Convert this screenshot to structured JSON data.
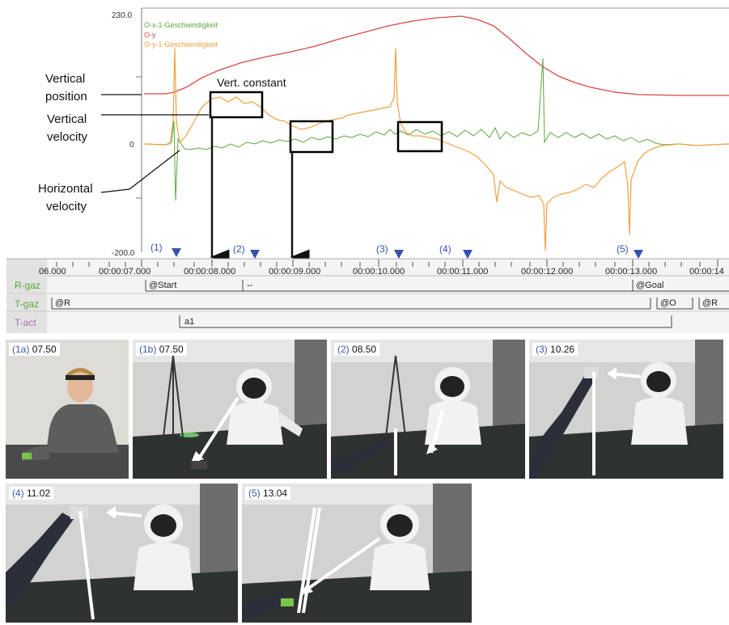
{
  "chart": {
    "y_max_label": "230.0",
    "y_zero_label": "0",
    "y_min_label": "-200.0",
    "legend": [
      {
        "label": "O-x-1-Geschwindigkeit",
        "color": "#5aa63a"
      },
      {
        "label": "O-y",
        "color": "#d84848"
      },
      {
        "label": "O-y-1-Geschwindigkeit",
        "color": "#f0a040"
      }
    ],
    "annotations": {
      "vertical_position": [
        "Vertical",
        "position"
      ],
      "vertical_velocity": [
        "Vertical",
        "velocity"
      ],
      "horizontal_velocity": [
        "Horizontal",
        "velocity"
      ],
      "vert_constant": "Vert. constant"
    },
    "markers": [
      "(1)",
      "(2)",
      "(3)",
      "(4)",
      "(5)"
    ],
    "marker_color": "#3352b0"
  },
  "timeline": {
    "ticks": [
      "06.000",
      "00:00:07.000",
      "00:00:08.000",
      "00:00:09.000",
      "00:00:10.000",
      "00:00:11.000",
      "00:00:12.000",
      "00:00:13.000",
      "00:00:14"
    ],
    "tracks": [
      {
        "name": "R-gaz",
        "color": "#5aa63a",
        "segments": [
          "@Start",
          "--",
          "@Goal"
        ]
      },
      {
        "name": "T-gaz",
        "color": "#5aa63a",
        "segments": [
          "@R",
          "@O",
          "@R"
        ]
      },
      {
        "name": "T-act",
        "color": "#b06ab0",
        "segments": [
          "a1"
        ]
      }
    ]
  },
  "frames": [
    {
      "index": "(1a)",
      "time": "07.50"
    },
    {
      "index": "(1b)",
      "time": "07.50"
    },
    {
      "index": "(2)",
      "time": "08.50"
    },
    {
      "index": "(3)",
      "time": "10.26"
    },
    {
      "index": "(4)",
      "time": "11.02"
    },
    {
      "index": "(5)",
      "time": "13.04"
    }
  ]
}
